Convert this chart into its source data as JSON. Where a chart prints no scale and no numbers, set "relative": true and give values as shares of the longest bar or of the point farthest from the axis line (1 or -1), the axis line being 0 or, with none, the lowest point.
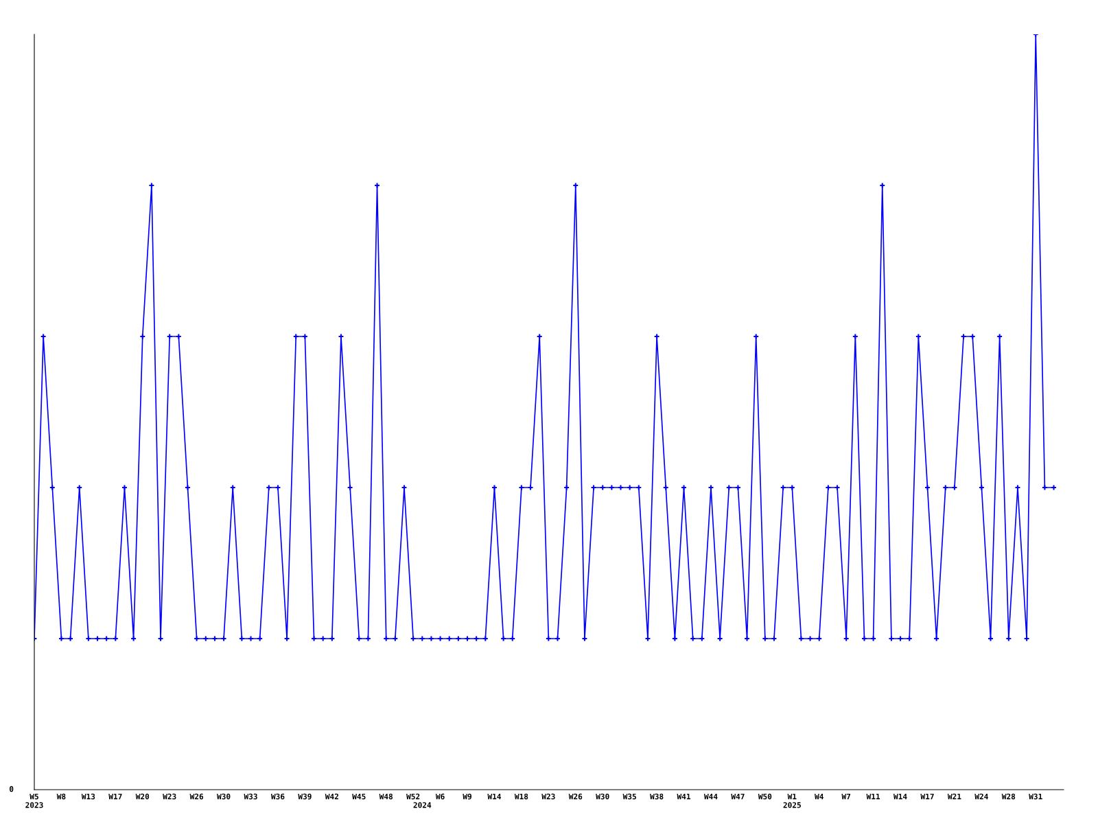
{
  "chart_data": {
    "type": "line",
    "relative": true,
    "marker": "cross",
    "grid": false,
    "legend": false,
    "annotations": [
      "0"
    ],
    "categories": [
      "W5\n2023",
      null,
      null,
      "W8",
      null,
      null,
      "W13",
      null,
      null,
      "W17",
      null,
      null,
      "W20",
      null,
      null,
      "W23",
      null,
      null,
      "W26",
      null,
      null,
      "W30",
      null,
      null,
      "W33",
      null,
      null,
      "W36",
      null,
      null,
      "W39",
      null,
      null,
      "W42",
      null,
      null,
      "W45",
      null,
      null,
      "W48",
      null,
      null,
      "W52",
      "\n2024",
      null,
      "W6",
      null,
      null,
      "W9",
      null,
      null,
      "W14",
      null,
      null,
      "W18",
      null,
      null,
      "W23",
      null,
      null,
      "W26",
      null,
      null,
      "W30",
      null,
      null,
      "W35",
      null,
      null,
      "W38",
      null,
      null,
      "W41",
      null,
      null,
      "W44",
      null,
      null,
      "W47",
      null,
      null,
      "W50",
      null,
      null,
      "W1\n2025",
      null,
      null,
      "W4",
      null,
      null,
      "W7",
      null,
      null,
      "W11",
      null,
      null,
      "W14",
      null,
      null,
      "W17",
      null,
      null,
      "W21",
      null,
      null,
      "W24",
      null,
      null,
      "W28",
      null,
      null,
      "W31",
      null,
      null
    ],
    "series": [
      {
        "color": "#0000ff",
        "values": [
          0.2,
          0.6,
          0.4,
          0.2,
          0.2,
          0.4,
          0.2,
          0.2,
          0.2,
          0.2,
          0.4,
          0.2,
          0.6,
          0.8,
          0.2,
          0.6,
          0.6,
          0.4,
          0.2,
          0.2,
          0.2,
          0.2,
          0.4,
          0.2,
          0.2,
          0.2,
          0.4,
          0.4,
          0.2,
          0.6,
          0.6,
          0.2,
          0.2,
          0.2,
          0.6,
          0.4,
          0.2,
          0.2,
          0.8,
          0.2,
          0.2,
          0.4,
          0.2,
          0.2,
          0.2,
          0.2,
          0.2,
          0.2,
          0.2,
          0.2,
          0.2,
          0.4,
          0.2,
          0.2,
          0.4,
          0.4,
          0.6,
          0.2,
          0.2,
          0.4,
          0.8,
          0.2,
          0.4,
          0.4,
          0.4,
          0.4,
          0.4,
          0.4,
          0.2,
          0.6,
          0.4,
          0.2,
          0.4,
          0.2,
          0.2,
          0.4,
          0.2,
          0.4,
          0.4,
          0.2,
          0.6,
          0.2,
          0.2,
          0.4,
          0.4,
          0.2,
          0.2,
          0.2,
          0.4,
          0.4,
          0.2,
          0.6,
          0.2,
          0.2,
          0.8,
          0.2,
          0.2,
          0.2,
          0.6,
          0.4,
          0.2,
          0.4,
          0.4,
          0.6,
          0.6,
          0.4,
          0.2,
          0.6,
          0.2,
          0.4,
          0.2,
          1,
          0.4,
          0.4
        ]
      }
    ]
  }
}
